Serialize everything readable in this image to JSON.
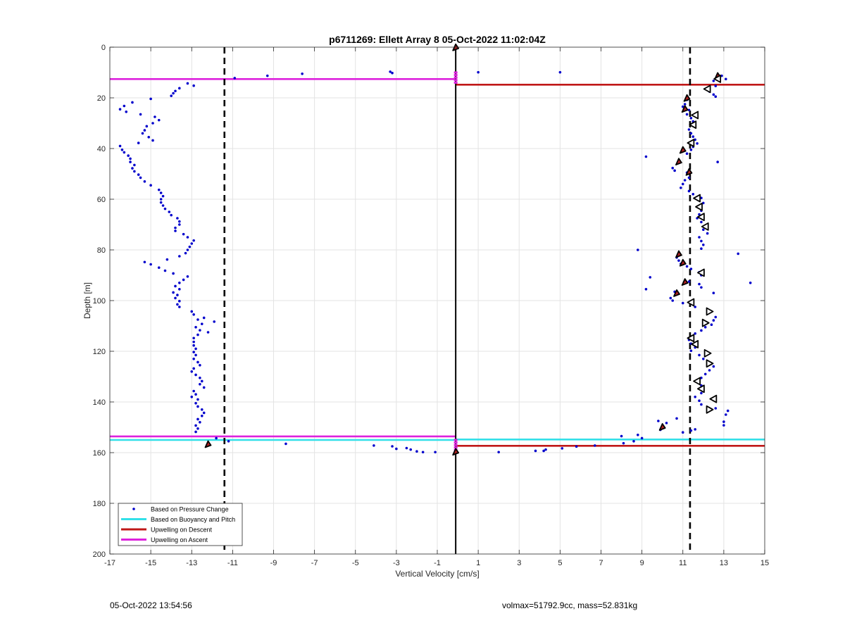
{
  "footer": {
    "timestamp": "05-Oct-2022 13:54:56",
    "info": "volmax=51792.9cc, mass=52.831kg"
  },
  "chart_data": {
    "type": "scatter",
    "title": "p6711269: Ellett Array 8 05-Oct-2022 11:02:04Z",
    "xlabel": "Vertical Velocity [cm/s]",
    "ylabel": "Depth [m]",
    "xlim": [
      -17,
      15
    ],
    "ylim": [
      200,
      0
    ],
    "y_reversed": true,
    "xticks": [
      -17,
      -15,
      -13,
      -11,
      -9,
      -7,
      -5,
      -3,
      -1,
      1,
      3,
      5,
      7,
      9,
      11,
      13,
      15
    ],
    "yticks": [
      0,
      20,
      40,
      60,
      80,
      100,
      120,
      140,
      160,
      180,
      200
    ],
    "grid": true,
    "legend_position": "bottom-left",
    "legend": [
      {
        "label": "Based on Pressure Change",
        "color": "#0000cc",
        "style": "dot"
      },
      {
        "label": "Based on Buoyancy and Pitch",
        "color": "#33e0e8",
        "style": "line"
      },
      {
        "label": "Upwelling on Descent",
        "color": "#c01818",
        "style": "line"
      },
      {
        "label": "Upwelling on Ascent",
        "color": "#dd22dd",
        "style": "line"
      }
    ],
    "colors": {
      "pressure": "#0000cc",
      "buoyancy": "#33e0e8",
      "descent": "#c01818",
      "ascent": "#dd22dd",
      "ref": "#000000",
      "marker_fill": "#b22222"
    },
    "reference_lines": {
      "solid_x": -0.1,
      "dashed_x": [
        -11.4,
        11.35
      ]
    },
    "horizontal_lines": [
      {
        "series": "ascent",
        "y": 12.6,
        "x_from": -17,
        "x_to": -0.1
      },
      {
        "series": "descent",
        "y": 14.8,
        "x_from": -0.1,
        "x_to": 15
      },
      {
        "series": "ascent",
        "y": 153.6,
        "x_from": -17,
        "x_to": -0.1
      },
      {
        "series": "buoyancy",
        "y": 155.0,
        "x_from": -17,
        "x_to": -0.1
      },
      {
        "series": "buoyancy",
        "y": 154.8,
        "x_from": -0.1,
        "x_to": 15
      },
      {
        "series": "descent",
        "y": 157.3,
        "x_from": -0.1,
        "x_to": 15
      }
    ],
    "ascent_markers": {
      "x": -0.1,
      "y": [
        10,
        11,
        12,
        13,
        14,
        155,
        156,
        157,
        158,
        159
      ]
    },
    "series": [
      {
        "name": "Based on Pressure Change",
        "points": [
          [
            -13.2,
            14.3
          ],
          [
            -12.9,
            15.2
          ],
          [
            -13.6,
            16.2
          ],
          [
            -13.8,
            17.3
          ],
          [
            -13.9,
            18.2
          ],
          [
            -14.0,
            19.2
          ],
          [
            -15.0,
            20.4
          ],
          [
            -15.9,
            21.8
          ],
          [
            -16.3,
            23.2
          ],
          [
            -16.5,
            24.5
          ],
          [
            -16.2,
            25.5
          ],
          [
            -15.5,
            26.5
          ],
          [
            -14.8,
            27.5
          ],
          [
            -14.6,
            28.8
          ],
          [
            -14.9,
            30.0
          ],
          [
            -15.2,
            31.2
          ],
          [
            -15.3,
            32.8
          ],
          [
            -15.4,
            34.0
          ],
          [
            -15.1,
            35.5
          ],
          [
            -14.9,
            36.8
          ],
          [
            -15.6,
            37.8
          ],
          [
            -16.5,
            39.0
          ],
          [
            -16.4,
            40.5
          ],
          [
            -16.3,
            41.5
          ],
          [
            -16.1,
            42.8
          ],
          [
            -16.0,
            44.0
          ],
          [
            -16.0,
            45.3
          ],
          [
            -15.8,
            46.5
          ],
          [
            -15.9,
            47.8
          ],
          [
            -15.8,
            49.0
          ],
          [
            -15.6,
            50.3
          ],
          [
            -15.5,
            51.5
          ],
          [
            -15.3,
            53.0
          ],
          [
            -15.0,
            54.5
          ],
          [
            -14.6,
            56.3
          ],
          [
            -14.5,
            57.5
          ],
          [
            -14.4,
            58.8
          ],
          [
            -14.5,
            60.0
          ],
          [
            -14.5,
            61.3
          ],
          [
            -14.4,
            62.5
          ],
          [
            -14.3,
            63.8
          ],
          [
            -14.1,
            65.0
          ],
          [
            -14.0,
            66.3
          ],
          [
            -13.7,
            67.5
          ],
          [
            -13.6,
            68.8
          ],
          [
            -13.6,
            70.0
          ],
          [
            -13.8,
            71.3
          ],
          [
            -13.8,
            72.5
          ],
          [
            -13.4,
            73.8
          ],
          [
            -13.2,
            75.0
          ],
          [
            -12.9,
            76.3
          ],
          [
            -13.0,
            77.5
          ],
          [
            -13.1,
            78.8
          ],
          [
            -13.2,
            80.0
          ],
          [
            -13.3,
            81.3
          ],
          [
            -13.6,
            82.5
          ],
          [
            -14.2,
            83.8
          ],
          [
            -15.3,
            84.8
          ],
          [
            -15.0,
            85.7
          ],
          [
            -14.6,
            87.0
          ],
          [
            -14.3,
            88.2
          ],
          [
            -13.9,
            89.3
          ],
          [
            -13.2,
            90.5
          ],
          [
            -13.4,
            91.8
          ],
          [
            -13.6,
            93.0
          ],
          [
            -13.8,
            94.3
          ],
          [
            -13.6,
            95.5
          ],
          [
            -13.9,
            96.8
          ],
          [
            -13.7,
            97.8
          ],
          [
            -13.8,
            99.0
          ],
          [
            -13.6,
            100.2
          ],
          [
            -13.7,
            101.5
          ],
          [
            -13.6,
            102.5
          ],
          [
            -13.0,
            104.3
          ],
          [
            -12.9,
            105.5
          ],
          [
            -12.4,
            106.8
          ],
          [
            -12.7,
            107.5
          ],
          [
            -11.9,
            108.3
          ],
          [
            -12.5,
            109.2
          ],
          [
            -12.8,
            110.5
          ],
          [
            -12.6,
            111.7
          ],
          [
            -12.2,
            112.5
          ],
          [
            -12.7,
            113.5
          ],
          [
            -12.9,
            114.8
          ],
          [
            -12.9,
            116.3
          ],
          [
            -12.9,
            117.7
          ],
          [
            -12.8,
            119.0
          ],
          [
            -12.9,
            120.3
          ],
          [
            -12.8,
            121.5
          ],
          [
            -12.9,
            123.0
          ],
          [
            -12.7,
            124.3
          ],
          [
            -12.6,
            125.5
          ],
          [
            -12.9,
            126.8
          ],
          [
            -13.0,
            128.0
          ],
          [
            -12.8,
            129.3
          ],
          [
            -12.6,
            130.5
          ],
          [
            -12.5,
            131.8
          ],
          [
            -12.6,
            133.0
          ],
          [
            -12.4,
            134.3
          ],
          [
            -12.9,
            135.7
          ],
          [
            -12.8,
            137.0
          ],
          [
            -13.0,
            138.0
          ],
          [
            -12.7,
            139.0
          ],
          [
            -12.8,
            140.5
          ],
          [
            -12.7,
            141.8
          ],
          [
            -12.5,
            143.0
          ],
          [
            -12.4,
            144.3
          ],
          [
            -12.5,
            145.5
          ],
          [
            -12.7,
            146.8
          ],
          [
            -12.6,
            148.0
          ],
          [
            -12.8,
            149.3
          ],
          [
            -12.7,
            150.5
          ],
          [
            -12.8,
            151.8
          ],
          [
            -11.8,
            154.3
          ],
          [
            -11.2,
            155.5
          ],
          [
            -8.4,
            156.5
          ],
          [
            -4.1,
            157.2
          ],
          [
            -3.2,
            157.5
          ],
          [
            -3.0,
            158.5
          ],
          [
            -2.5,
            158.2
          ],
          [
            -2.3,
            158.8
          ],
          [
            -2.0,
            159.5
          ],
          [
            -1.7,
            159.8
          ],
          [
            -1.1,
            159.8
          ],
          [
            -10.9,
            12.2
          ],
          [
            -9.3,
            11.3
          ],
          [
            -7.6,
            10.5
          ],
          [
            -3.3,
            9.7
          ],
          [
            -3.2,
            10.2
          ],
          [
            1.0,
            9.9
          ],
          [
            5.0,
            9.9
          ],
          [
            13.1,
            12.6
          ],
          [
            12.9,
            11.3
          ],
          [
            12.5,
            13.3
          ],
          [
            12.6,
            15.3
          ],
          [
            12.2,
            16.7
          ],
          [
            12.3,
            17.5
          ],
          [
            12.5,
            18.7
          ],
          [
            12.6,
            19.5
          ],
          [
            11.2,
            20.8
          ],
          [
            11.1,
            22.5
          ],
          [
            11.0,
            23.5
          ],
          [
            11.3,
            24.8
          ],
          [
            11.2,
            26.5
          ],
          [
            11.4,
            28.0
          ],
          [
            11.5,
            29.3
          ],
          [
            11.6,
            30.8
          ],
          [
            11.3,
            32.5
          ],
          [
            11.4,
            34.0
          ],
          [
            11.5,
            35.3
          ],
          [
            11.6,
            36.5
          ],
          [
            11.7,
            38.0
          ],
          [
            11.5,
            39.3
          ],
          [
            11.4,
            40.5
          ],
          [
            11.2,
            42.0
          ],
          [
            9.2,
            43.2
          ],
          [
            12.7,
            45.3
          ],
          [
            10.5,
            47.7
          ],
          [
            10.6,
            48.7
          ],
          [
            11.2,
            49.5
          ],
          [
            11.3,
            51.5
          ],
          [
            11.1,
            52.5
          ],
          [
            11.0,
            54.0
          ],
          [
            10.9,
            55.5
          ],
          [
            11.3,
            56.8
          ],
          [
            11.5,
            58.0
          ],
          [
            11.9,
            59.5
          ],
          [
            12.0,
            61.5
          ],
          [
            11.8,
            63.0
          ],
          [
            11.9,
            64.5
          ],
          [
            11.8,
            66.0
          ],
          [
            11.7,
            67.5
          ],
          [
            11.9,
            69.0
          ],
          [
            12.1,
            70.5
          ],
          [
            12.0,
            72.0
          ],
          [
            12.2,
            73.5
          ],
          [
            11.8,
            75.0
          ],
          [
            11.9,
            76.5
          ],
          [
            12.0,
            78.0
          ],
          [
            11.9,
            79.5
          ],
          [
            8.8,
            80.0
          ],
          [
            13.7,
            81.5
          ],
          [
            10.7,
            83.0
          ],
          [
            10.8,
            84.2
          ],
          [
            10.9,
            85.5
          ],
          [
            11.2,
            86.5
          ],
          [
            11.4,
            87.5
          ],
          [
            11.8,
            88.8
          ],
          [
            11.9,
            90.0
          ],
          [
            9.4,
            90.8
          ],
          [
            14.3,
            93.0
          ],
          [
            11.3,
            92.5
          ],
          [
            11.8,
            93.5
          ],
          [
            11.9,
            94.8
          ],
          [
            9.2,
            95.5
          ],
          [
            10.6,
            96.5
          ],
          [
            12.5,
            97.0
          ],
          [
            10.4,
            99.0
          ],
          [
            10.5,
            100.0
          ],
          [
            11.0,
            101.0
          ],
          [
            11.6,
            102.5
          ],
          [
            12.2,
            104.0
          ],
          [
            12.6,
            106.5
          ],
          [
            12.5,
            107.8
          ],
          [
            12.4,
            109.5
          ],
          [
            12.1,
            110.5
          ],
          [
            11.9,
            111.8
          ],
          [
            11.6,
            113.0
          ],
          [
            11.3,
            115.5
          ],
          [
            11.4,
            117.0
          ],
          [
            11.6,
            118.5
          ],
          [
            11.4,
            119.8
          ],
          [
            11.8,
            121.5
          ],
          [
            12.0,
            123.0
          ],
          [
            12.3,
            124.5
          ],
          [
            12.5,
            126.0
          ],
          [
            12.3,
            127.5
          ],
          [
            12.1,
            129.0
          ],
          [
            11.9,
            130.5
          ],
          [
            11.7,
            132.0
          ],
          [
            11.9,
            133.5
          ],
          [
            12.0,
            135.0
          ],
          [
            11.9,
            136.5
          ],
          [
            11.6,
            138.0
          ],
          [
            11.8,
            139.5
          ],
          [
            11.9,
            141.0
          ],
          [
            12.6,
            142.5
          ],
          [
            13.2,
            143.5
          ],
          [
            13.1,
            145.0
          ],
          [
            13.0,
            147.8
          ],
          [
            13.0,
            149.2
          ],
          [
            10.2,
            148.3
          ],
          [
            9.8,
            147.5
          ],
          [
            10.7,
            146.5
          ],
          [
            11.4,
            151.3
          ],
          [
            11.6,
            150.8
          ],
          [
            11.0,
            152.0
          ],
          [
            9.9,
            151.0
          ],
          [
            8.0,
            153.5
          ],
          [
            8.8,
            153.0
          ],
          [
            9.0,
            154.3
          ],
          [
            8.6,
            155.5
          ],
          [
            8.1,
            156.3
          ],
          [
            6.7,
            157.2
          ],
          [
            5.8,
            157.6
          ],
          [
            5.1,
            158.3
          ],
          [
            4.3,
            158.8
          ],
          [
            4.2,
            159.3
          ],
          [
            3.8,
            159.3
          ],
          [
            2.0,
            159.8
          ]
        ]
      }
    ],
    "markers": {
      "filled": [
        [
          -0.1,
          0.2
        ],
        [
          12.7,
          11.5
        ],
        [
          11.2,
          20.2
        ],
        [
          11.1,
          24.5
        ],
        [
          11.0,
          40.7
        ],
        [
          10.8,
          45.3
        ],
        [
          11.3,
          49.4
        ],
        [
          10.8,
          81.8
        ],
        [
          11.0,
          85.2
        ],
        [
          11.1,
          92.8
        ],
        [
          10.7,
          97.2
        ],
        [
          10.0,
          150.0
        ],
        [
          -12.2,
          156.8
        ],
        [
          -0.1,
          159.8
        ]
      ],
      "open_left": [
        [
          12.7,
          12.5
        ],
        [
          12.2,
          16.5
        ],
        [
          11.6,
          26.8
        ],
        [
          11.5,
          30.6
        ],
        [
          11.4,
          37.8
        ],
        [
          11.7,
          59.6
        ],
        [
          11.8,
          63.0
        ],
        [
          11.9,
          67.0
        ],
        [
          12.1,
          70.8
        ],
        [
          11.9,
          89.0
        ],
        [
          11.4,
          100.7
        ],
        [
          11.4,
          114.8
        ],
        [
          11.6,
          117.2
        ],
        [
          11.7,
          131.8
        ],
        [
          11.9,
          134.8
        ],
        [
          12.5,
          138.8
        ]
      ],
      "open_right": [
        [
          12.3,
          104.3
        ],
        [
          12.1,
          108.8
        ],
        [
          12.2,
          120.8
        ],
        [
          12.3,
          124.8
        ],
        [
          12.3,
          143.0
        ]
      ]
    }
  }
}
